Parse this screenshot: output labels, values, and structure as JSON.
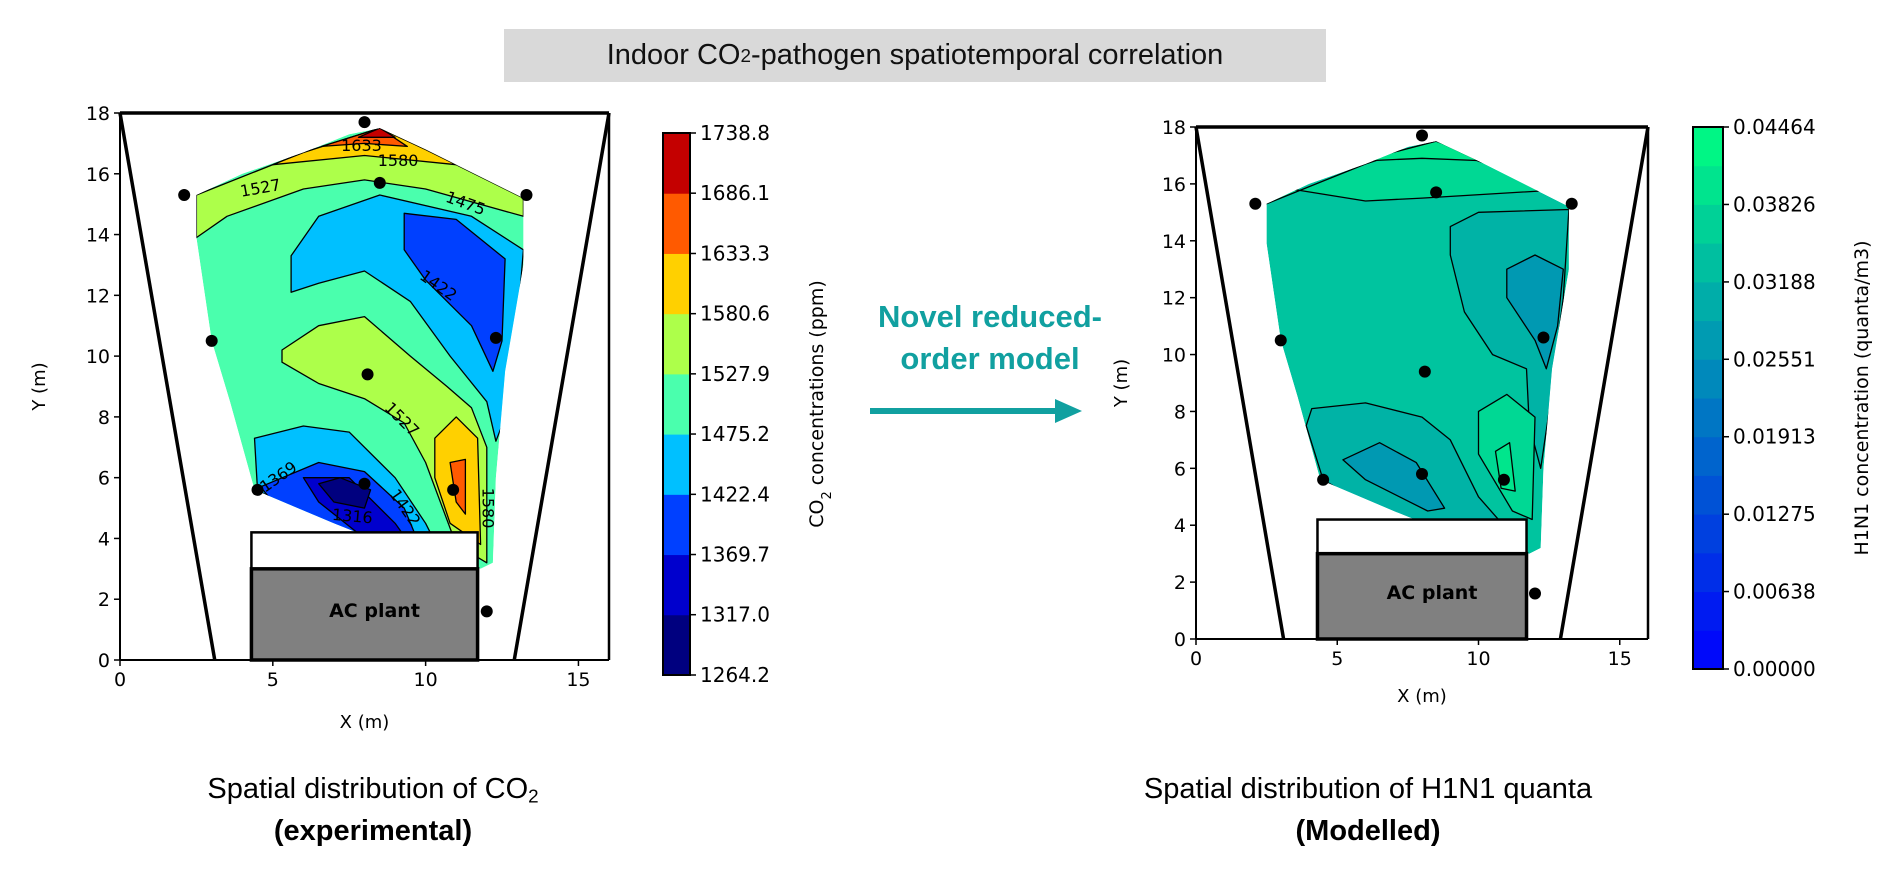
{
  "title": {
    "pre": "Indoor CO",
    "sub": "2",
    "post": "-pathogen spatiotemporal correlation"
  },
  "arrow": {
    "line1": "Novel reduced-",
    "line2": "order model",
    "color": "#11a0a0"
  },
  "captions": {
    "left": {
      "pre": "Spatial distribution of CO",
      "sub": "2",
      "bold": "(experimental)"
    },
    "right": {
      "pre": "Spatial distribution of H1N1 quanta",
      "bold": "(Modelled)"
    }
  },
  "chart_data": [
    {
      "type": "contour",
      "xlabel": "X (m)",
      "ylabel": "Y (m)",
      "xlim": [
        0,
        16
      ],
      "ylim": [
        0,
        18
      ],
      "xticks": [
        0,
        5,
        10,
        15
      ],
      "yticks": [
        0,
        2,
        4,
        6,
        8,
        10,
        12,
        14,
        16,
        18
      ],
      "colorbar": {
        "label_pre": "CO",
        "label_sub": "2",
        "label_post": " concentrations (ppm)",
        "levels": [
          1264.2,
          1317.0,
          1369.7,
          1422.4,
          1475.2,
          1527.9,
          1580.6,
          1633.3,
          1686.1,
          1738.8
        ],
        "tick_labels": [
          "1264.2",
          "1317.0",
          "1369.7",
          "1422.4",
          "1475.2",
          "1527.9",
          "1580.6",
          "1633.3",
          "1686.1",
          "1738.8"
        ],
        "colors": [
          "#00007f",
          "#0000cd",
          "#0040ff",
          "#00c0ff",
          "#4affad",
          "#adff4a",
          "#ffd000",
          "#ff5a00",
          "#c40000"
        ]
      },
      "base_fill": "#4affad",
      "regions": [
        {
          "fill": "#adff4a",
          "points": [
            [
              2.5,
              13.9
            ],
            [
              3.5,
              14.6
            ],
            [
              6,
              15.5
            ],
            [
              8,
              15.8
            ],
            [
              10,
              15.5
            ],
            [
              13.2,
              14.6
            ],
            [
              13.2,
              15.2
            ],
            [
              10,
              16.8
            ],
            [
              8.5,
              17.5
            ],
            [
              6,
              16.7
            ],
            [
              2.5,
              15.3
            ]
          ]
        },
        {
          "fill": "#ffd000",
          "points": [
            [
              5,
              16.3
            ],
            [
              8,
              16.6
            ],
            [
              11,
              16.3
            ],
            [
              10,
              16.8
            ],
            [
              8.5,
              17.5
            ],
            [
              6,
              16.7
            ]
          ]
        },
        {
          "fill": "#ff5a00",
          "points": [
            [
              6.6,
              16.9
            ],
            [
              8,
              17.0
            ],
            [
              9.4,
              16.9
            ],
            [
              8.5,
              17.5
            ]
          ]
        },
        {
          "fill": "#c40000",
          "points": [
            [
              7.8,
              17.2
            ],
            [
              9,
              17.2
            ],
            [
              8.5,
              17.5
            ]
          ]
        },
        {
          "fill": "#00c0ff",
          "points": [
            [
              5.6,
              12.1
            ],
            [
              6.5,
              12.4
            ],
            [
              8,
              12.8
            ],
            [
              9.5,
              11.8
            ],
            [
              10.8,
              10
            ],
            [
              12,
              8.5
            ],
            [
              12.3,
              7.2
            ],
            [
              12.8,
              8.5
            ],
            [
              13,
              11
            ],
            [
              13.2,
              13.5
            ],
            [
              11.5,
              14.6
            ],
            [
              8.5,
              15.3
            ],
            [
              6.5,
              14.6
            ],
            [
              5.6,
              13.3
            ]
          ]
        },
        {
          "fill": "#0040ff",
          "points": [
            [
              9.3,
              14.7
            ],
            [
              11,
              14.5
            ],
            [
              12.6,
              13.2
            ],
            [
              12.5,
              10.5
            ],
            [
              12.2,
              9.5
            ],
            [
              11.5,
              11
            ],
            [
              10,
              12.5
            ],
            [
              9.3,
              13.5
            ]
          ]
        },
        {
          "fill": "#adff4a",
          "points": [
            [
              5.3,
              10.2
            ],
            [
              6.5,
              11
            ],
            [
              8,
              11.3
            ],
            [
              9.5,
              10
            ],
            [
              10.7,
              9
            ],
            [
              11.5,
              8.3
            ],
            [
              12,
              7
            ],
            [
              12,
              3.2
            ],
            [
              11,
              3.8
            ],
            [
              10,
              6.5
            ],
            [
              9.3,
              7.8
            ],
            [
              8,
              8.6
            ],
            [
              6.5,
              9.1
            ],
            [
              5.3,
              9.8
            ]
          ]
        },
        {
          "fill": "#ffd000",
          "points": [
            [
              10.3,
              7.3
            ],
            [
              11,
              8.0
            ],
            [
              11.7,
              7.3
            ],
            [
              11.8,
              3.8
            ],
            [
              10.8,
              4.5
            ],
            [
              10.3,
              6
            ]
          ]
        },
        {
          "fill": "#ff5a00",
          "points": [
            [
              10.8,
              6.5
            ],
            [
              11.3,
              6.6
            ],
            [
              11.3,
              4.8
            ],
            [
              11,
              5.2
            ]
          ]
        },
        {
          "fill": "#00c0ff",
          "points": [
            [
              4.4,
              7.3
            ],
            [
              6,
              7.7
            ],
            [
              7.5,
              7.5
            ],
            [
              9,
              6
            ],
            [
              10,
              4.5
            ],
            [
              10.7,
              3.1
            ],
            [
              8,
              3.5
            ],
            [
              4.5,
              5.6
            ]
          ]
        },
        {
          "fill": "#0040ff",
          "points": [
            [
              4.6,
              5.7
            ],
            [
              6.5,
              6.5
            ],
            [
              8,
              6.2
            ],
            [
              9.3,
              5
            ],
            [
              10,
              3.3
            ],
            [
              9,
              3.4
            ],
            [
              7,
              4.2
            ],
            [
              5,
              5.2
            ]
          ]
        },
        {
          "fill": "#0000cd",
          "points": [
            [
              6,
              6
            ],
            [
              7.5,
              6.0
            ],
            [
              9,
              4.5
            ],
            [
              9.5,
              3.8
            ],
            [
              8,
              4
            ],
            [
              6.5,
              5.2
            ]
          ]
        },
        {
          "fill": "#00007f",
          "points": [
            [
              6.5,
              5.8
            ],
            [
              7.2,
              6
            ],
            [
              8.2,
              5.6
            ],
            [
              8,
              5
            ],
            [
              7,
              5.2
            ]
          ]
        }
      ],
      "contour_labels": [
        {
          "text": "1633",
          "x": 7.9,
          "y": 16.9,
          "angle": 0
        },
        {
          "text": "1580",
          "x": 9.1,
          "y": 16.4,
          "angle": 0
        },
        {
          "text": "1527",
          "x": 4.6,
          "y": 15.5,
          "angle": -10
        },
        {
          "text": "1475",
          "x": 11.3,
          "y": 15.0,
          "angle": 20
        },
        {
          "text": "1422",
          "x": 10.4,
          "y": 12.3,
          "angle": 35
        },
        {
          "text": "1527",
          "x": 9.2,
          "y": 7.9,
          "angle": 45
        },
        {
          "text": "1369",
          "x": 5.2,
          "y": 6.0,
          "angle": -35
        },
        {
          "text": "1316",
          "x": 7.6,
          "y": 4.7,
          "angle": 5
        },
        {
          "text": "1422",
          "x": 9.3,
          "y": 5.0,
          "angle": 55
        },
        {
          "text": "1475",
          "x": 10.6,
          "y": 3.5,
          "angle": 55
        },
        {
          "text": "1580",
          "x": 12.0,
          "y": 5.0,
          "angle": 90
        }
      ]
    },
    {
      "type": "contour",
      "xlabel": "X (m)",
      "ylabel": "Y (m)",
      "xlim": [
        0,
        16
      ],
      "ylim": [
        0,
        18
      ],
      "xticks": [
        0,
        5,
        10,
        15
      ],
      "yticks": [
        0,
        2,
        4,
        6,
        8,
        10,
        12,
        14,
        16,
        18
      ],
      "colorbar": {
        "label_pre": "H1N1 concentration (quanta/m3)",
        "min": 0.0,
        "max": 0.04464,
        "bands": 14,
        "colormap": "winter",
        "tick_values": [
          0.0,
          0.00638,
          0.01275,
          0.01913,
          0.02551,
          0.03188,
          0.03826,
          0.04464
        ],
        "tick_labels": [
          "0.00000",
          "0.00638",
          "0.01275",
          "0.01913",
          "0.02551",
          "0.03188",
          "0.03826",
          "0.04464"
        ]
      },
      "base_fill": "#00c49f",
      "regions": [
        {
          "fill": "#00d894",
          "points": [
            [
              2.5,
              15.5
            ],
            [
              3.5,
              15.8
            ],
            [
              6,
              15.4
            ],
            [
              8,
              15.5
            ],
            [
              13,
              15.8
            ],
            [
              10,
              16.8
            ],
            [
              8.5,
              17.5
            ],
            [
              6,
              16.7
            ],
            [
              2.5,
              15.3
            ]
          ]
        },
        {
          "fill": "#00e68c",
          "points": [
            [
              5.8,
              16.8
            ],
            [
              8,
              16.9
            ],
            [
              10.5,
              16.8
            ],
            [
              8.5,
              17.5
            ]
          ]
        },
        {
          "fill": "#00b3a6",
          "points": [
            [
              9,
              14.5
            ],
            [
              10,
              15
            ],
            [
              13.2,
              15.1
            ],
            [
              13,
              12
            ],
            [
              12.5,
              8
            ],
            [
              12.2,
              6
            ],
            [
              11.8,
              7.5
            ],
            [
              11.7,
              9.5
            ],
            [
              10.5,
              10
            ],
            [
              9.5,
              11.5
            ],
            [
              9,
              13.5
            ]
          ]
        },
        {
          "fill": "#0099b2",
          "points": [
            [
              11,
              13
            ],
            [
              12,
              13.5
            ],
            [
              13,
              13
            ],
            [
              12.8,
              11
            ],
            [
              12.4,
              9.5
            ],
            [
              12,
              10.5
            ],
            [
              11,
              12
            ]
          ]
        },
        {
          "fill": "#00b3a6",
          "points": [
            [
              4.1,
              8.1
            ],
            [
              6,
              8.3
            ],
            [
              8,
              7.8
            ],
            [
              9,
              7
            ],
            [
              10,
              5
            ],
            [
              11.5,
              3.3
            ],
            [
              12,
              2.6
            ],
            [
              11.7,
              3
            ],
            [
              8,
              3.5
            ],
            [
              4.5,
              5.6
            ],
            [
              3.9,
              7.5
            ]
          ]
        },
        {
          "fill": "#0099b2",
          "points": [
            [
              5.2,
              6.3
            ],
            [
              6.5,
              6.9
            ],
            [
              7.8,
              6.2
            ],
            [
              8.8,
              4.6
            ],
            [
              8.2,
              4.5
            ],
            [
              6,
              5.6
            ]
          ]
        },
        {
          "fill": "#00d894",
          "points": [
            [
              10,
              8
            ],
            [
              11,
              8.6
            ],
            [
              12,
              7.8
            ],
            [
              11.9,
              4.2
            ],
            [
              11.2,
              4.5
            ],
            [
              10,
              6.5
            ]
          ]
        },
        {
          "fill": "#00e68c",
          "points": [
            [
              10.6,
              6.6
            ],
            [
              11.1,
              6.9
            ],
            [
              11.3,
              5.2
            ],
            [
              10.8,
              5.3
            ]
          ]
        }
      ],
      "contour_labels": []
    }
  ],
  "room": {
    "sensors": [
      [
        8,
        17.7
      ],
      [
        2.1,
        15.3
      ],
      [
        8.5,
        15.7
      ],
      [
        13.3,
        15.3
      ],
      [
        3,
        10.5
      ],
      [
        12.3,
        10.6
      ],
      [
        8.1,
        9.4
      ],
      [
        4.5,
        5.6
      ],
      [
        8,
        5.8
      ],
      [
        10.9,
        5.6
      ],
      [
        12,
        1.6
      ]
    ],
    "domain": [
      [
        2.5,
        15.3
      ],
      [
        4,
        16
      ],
      [
        6,
        16.7
      ],
      [
        7.5,
        17.3
      ],
      [
        8.5,
        17.5
      ],
      [
        10,
        16.8
      ],
      [
        13.2,
        15.2
      ],
      [
        13.2,
        13
      ],
      [
        12.6,
        9.5
      ],
      [
        12.3,
        6
      ],
      [
        12.2,
        3.2
      ],
      [
        11.8,
        3.0
      ],
      [
        9.5,
        3.5
      ],
      [
        7,
        4.5
      ],
      [
        4.4,
        5.6
      ],
      [
        3.6,
        8.5
      ],
      [
        3,
        10.5
      ],
      [
        2.5,
        13.9
      ]
    ],
    "ac_plant": {
      "label": "AC plant",
      "fill": "#808080",
      "x": [
        4.3,
        11.7
      ],
      "y": [
        0,
        3
      ],
      "hood_top": 4.2
    },
    "walls": [
      [
        [
          0,
          18
        ],
        [
          3.1,
          0
        ]
      ],
      [
        [
          16,
          18
        ],
        [
          12.9,
          0
        ]
      ]
    ]
  }
}
